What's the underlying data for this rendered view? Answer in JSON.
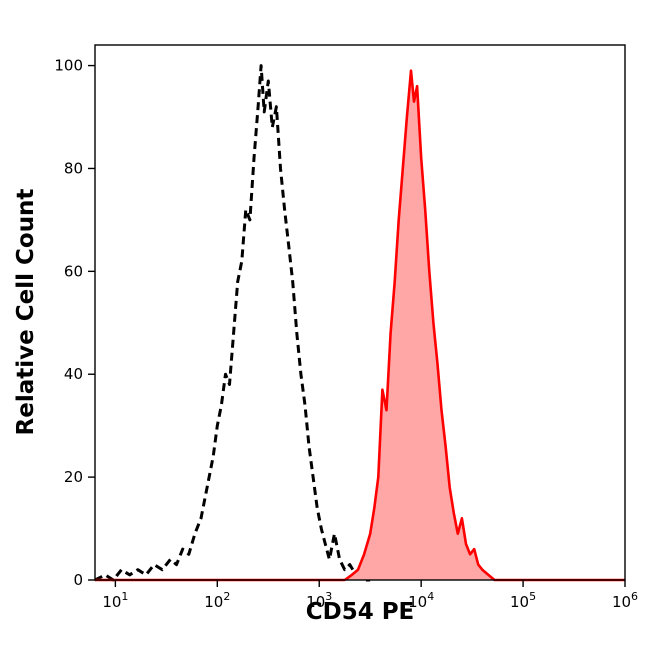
{
  "figure": {
    "background": "#ffffff",
    "frame_color": "#000000"
  },
  "chart_data": {
    "type": "area",
    "subtype": "flow-cytometry-overlay-histogram",
    "title": "",
    "xlabel": "CD54 PE",
    "ylabel": "Relative Cell Count",
    "x_scale": "log10",
    "x_range_log10": [
      0.8,
      6.0
    ],
    "y_range": [
      0,
      104
    ],
    "x_ticks_exponents": [
      1,
      2,
      3,
      4,
      5,
      6
    ],
    "x_tick_base": "10",
    "y_ticks": [
      0,
      20,
      40,
      60,
      80,
      100
    ],
    "grid": false,
    "legend": "none",
    "series": [
      {
        "name": "isotype-control",
        "style": "dashed",
        "color": "#000000",
        "fill": "none",
        "line_width": 3,
        "dash": "8 5",
        "peak_x": 270,
        "peak_y": 100,
        "points_log10x_y": [
          [
            0.8,
            0
          ],
          [
            0.9,
            1
          ],
          [
            0.98,
            0
          ],
          [
            1.06,
            2
          ],
          [
            1.14,
            1
          ],
          [
            1.22,
            2
          ],
          [
            1.3,
            1
          ],
          [
            1.38,
            3
          ],
          [
            1.46,
            2
          ],
          [
            1.54,
            4
          ],
          [
            1.6,
            3
          ],
          [
            1.66,
            6
          ],
          [
            1.72,
            5
          ],
          [
            1.78,
            9
          ],
          [
            1.84,
            12
          ],
          [
            1.9,
            18
          ],
          [
            1.96,
            24
          ],
          [
            2.0,
            30
          ],
          [
            2.04,
            34
          ],
          [
            2.08,
            40
          ],
          [
            2.12,
            38
          ],
          [
            2.16,
            48
          ],
          [
            2.2,
            58
          ],
          [
            2.24,
            62
          ],
          [
            2.28,
            72
          ],
          [
            2.32,
            70
          ],
          [
            2.36,
            82
          ],
          [
            2.4,
            92
          ],
          [
            2.43,
            100
          ],
          [
            2.46,
            91
          ],
          [
            2.5,
            97
          ],
          [
            2.54,
            88
          ],
          [
            2.58,
            92
          ],
          [
            2.62,
            80
          ],
          [
            2.66,
            72
          ],
          [
            2.7,
            65
          ],
          [
            2.74,
            58
          ],
          [
            2.78,
            48
          ],
          [
            2.82,
            40
          ],
          [
            2.86,
            34
          ],
          [
            2.9,
            26
          ],
          [
            2.94,
            20
          ],
          [
            2.98,
            14
          ],
          [
            3.02,
            10
          ],
          [
            3.06,
            7
          ],
          [
            3.1,
            4
          ],
          [
            3.15,
            9
          ],
          [
            3.2,
            4
          ],
          [
            3.25,
            2
          ],
          [
            3.3,
            3
          ],
          [
            3.36,
            1
          ],
          [
            3.42,
            0
          ],
          [
            3.5,
            0
          ]
        ]
      },
      {
        "name": "cd54-pe-stained",
        "style": "solid",
        "color": "#ff0000",
        "fill": "#ffa6a6",
        "line_width": 2.6,
        "dash": "",
        "peak_x": 8000,
        "peak_y": 99,
        "points_log10x_y": [
          [
            0.8,
            0
          ],
          [
            3.25,
            0
          ],
          [
            3.32,
            1
          ],
          [
            3.38,
            2
          ],
          [
            3.44,
            5
          ],
          [
            3.5,
            9
          ],
          [
            3.54,
            14
          ],
          [
            3.58,
            20
          ],
          [
            3.62,
            37
          ],
          [
            3.66,
            33
          ],
          [
            3.7,
            48
          ],
          [
            3.74,
            58
          ],
          [
            3.78,
            70
          ],
          [
            3.82,
            80
          ],
          [
            3.86,
            90
          ],
          [
            3.9,
            99
          ],
          [
            3.93,
            93
          ],
          [
            3.96,
            96
          ],
          [
            4.0,
            82
          ],
          [
            4.04,
            72
          ],
          [
            4.08,
            60
          ],
          [
            4.12,
            50
          ],
          [
            4.16,
            42
          ],
          [
            4.2,
            33
          ],
          [
            4.24,
            26
          ],
          [
            4.28,
            18
          ],
          [
            4.32,
            13
          ],
          [
            4.36,
            9
          ],
          [
            4.4,
            12
          ],
          [
            4.44,
            7
          ],
          [
            4.48,
            5
          ],
          [
            4.52,
            6
          ],
          [
            4.56,
            3
          ],
          [
            4.6,
            2
          ],
          [
            4.66,
            1
          ],
          [
            4.72,
            0
          ],
          [
            6.0,
            0
          ]
        ]
      }
    ]
  }
}
